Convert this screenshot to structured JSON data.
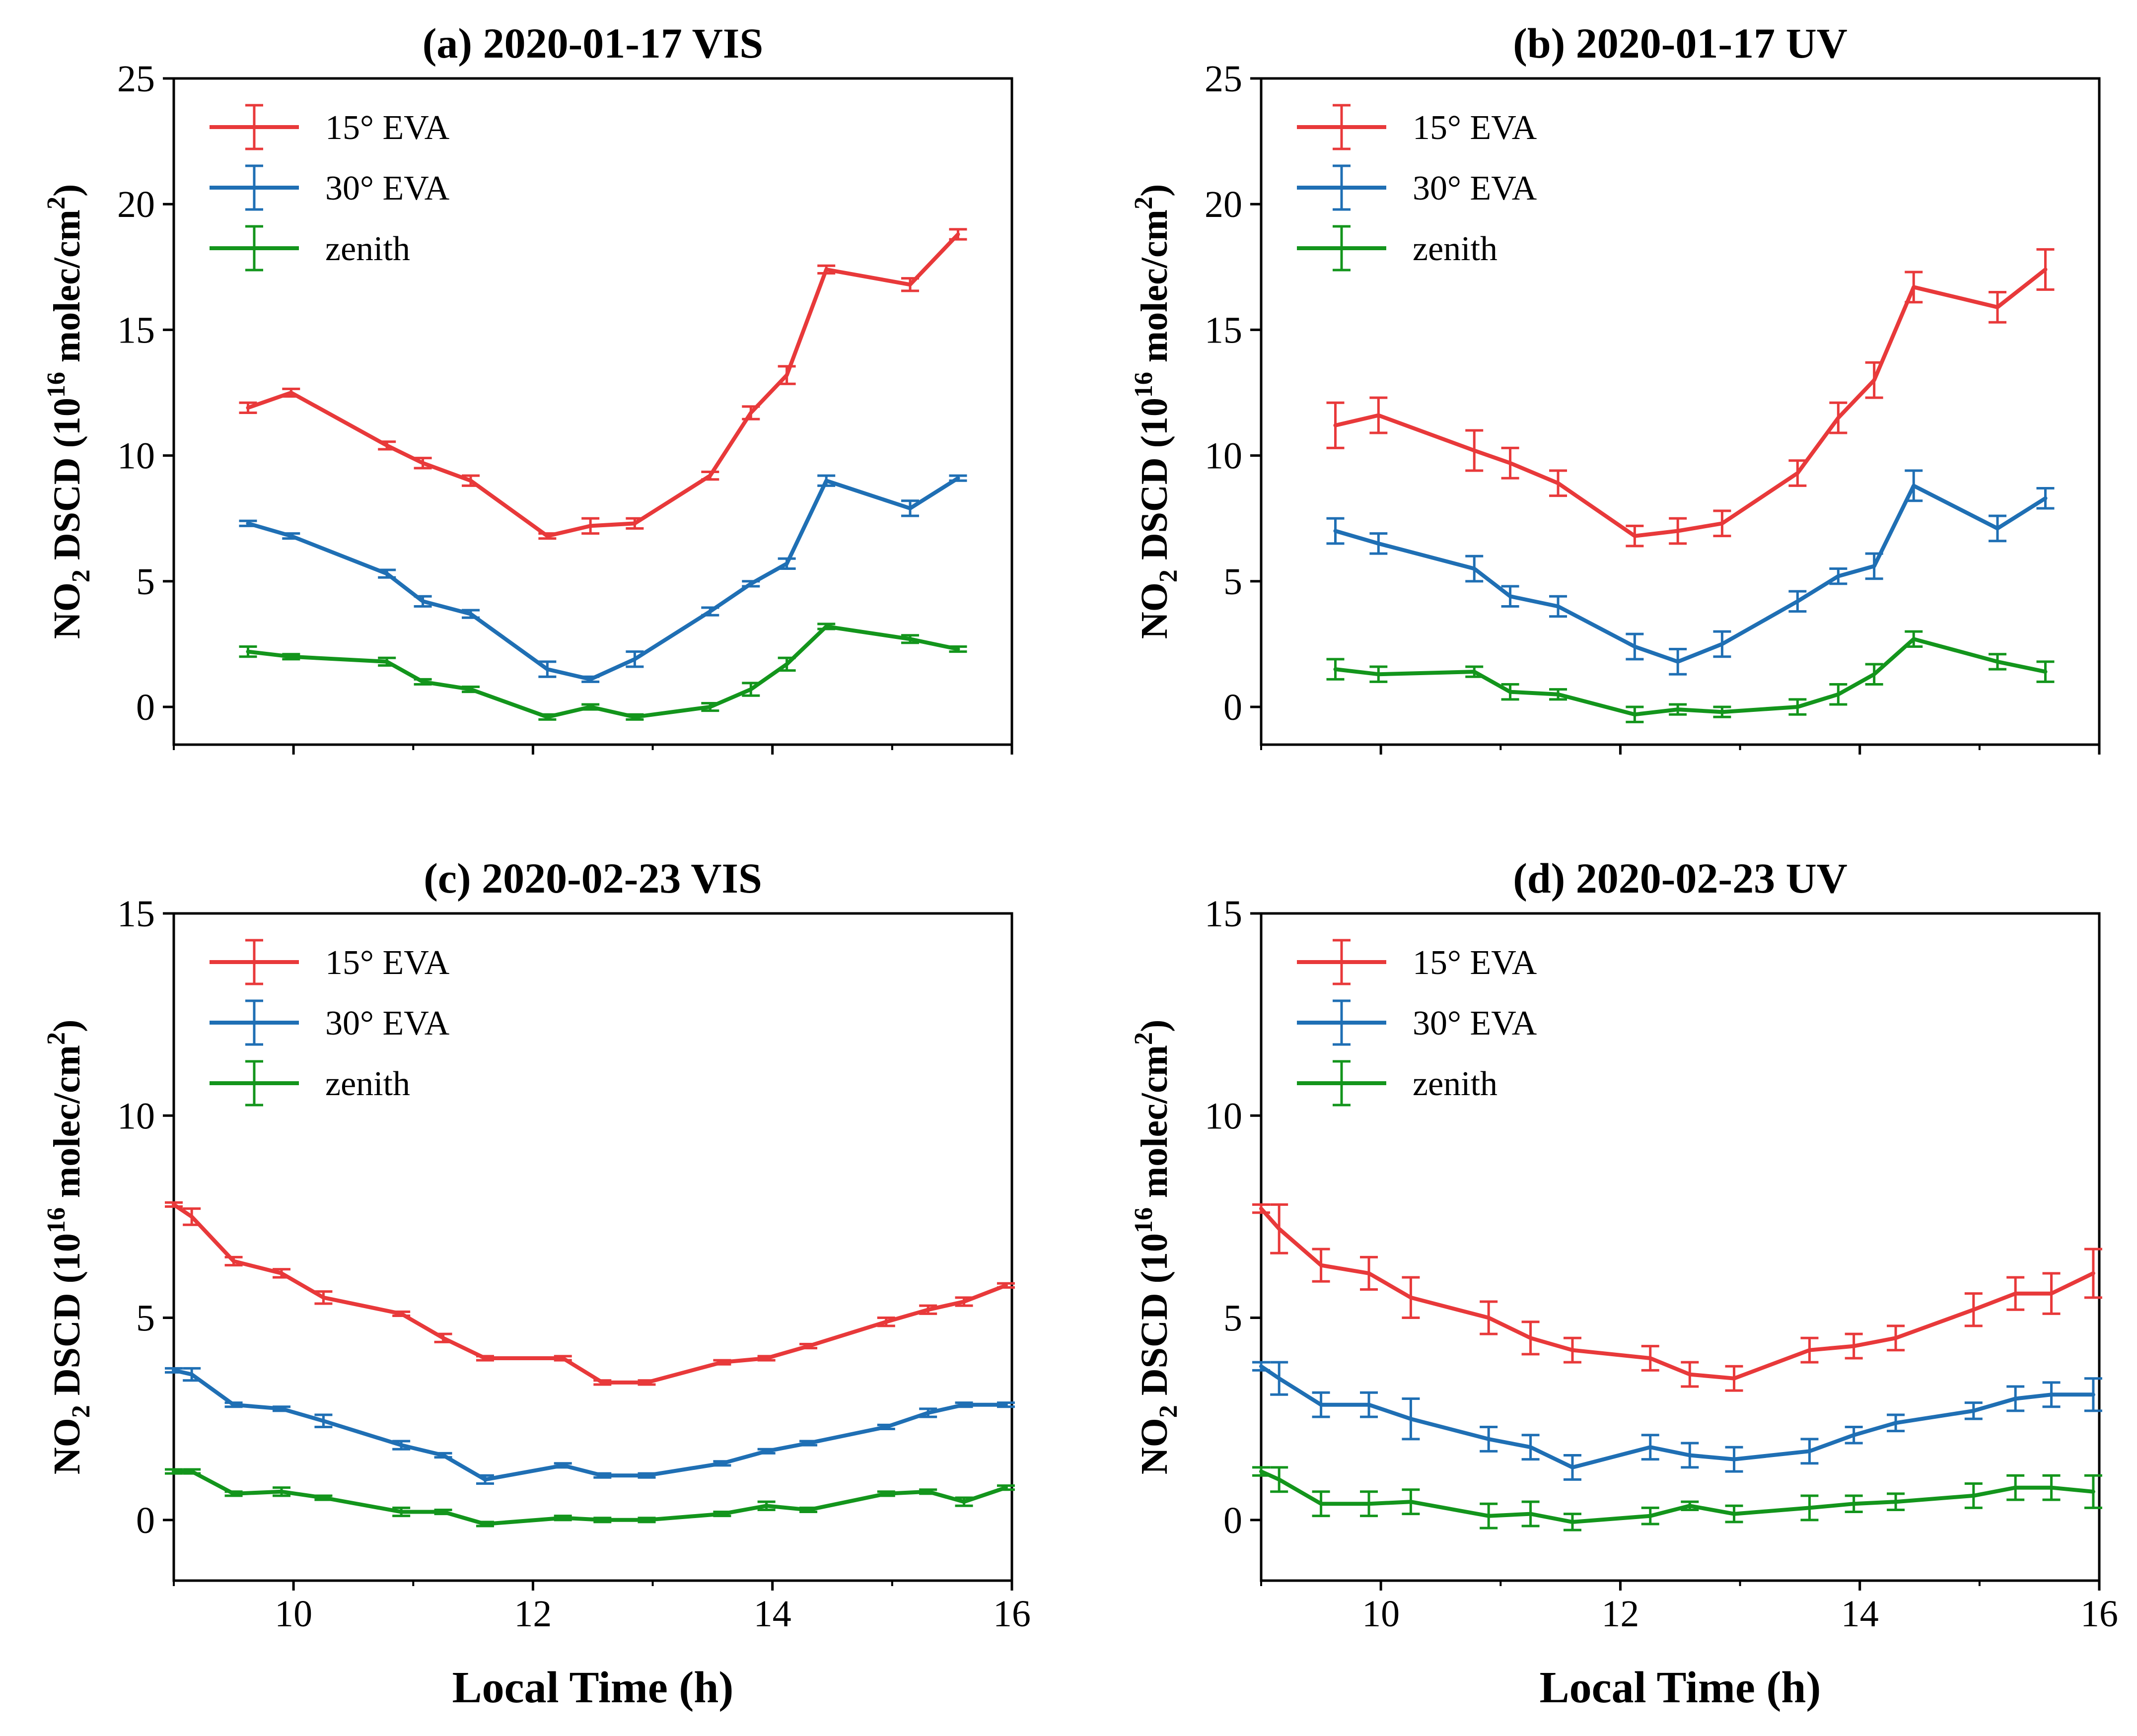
{
  "figure": {
    "xlabel": "Local Time (h)"
  },
  "chart_data": [
    {
      "type": "line",
      "title": "(a) 2020-01-17  VIS",
      "xlabel": "",
      "ylabel": "NO2 DSCD (10^16 molec/cm^2)",
      "ylabel_parts": {
        "main": "NO",
        "sub": "2",
        "mid": " DSCD (10",
        "sup": "16",
        "unit": " molec/cm",
        "sup2": "2",
        "close": ")"
      },
      "xlim": [
        9,
        16
      ],
      "ylim": [
        -1.5,
        25
      ],
      "xticks": [
        10,
        12,
        14,
        16
      ],
      "xtick_labels": false,
      "yticks": [
        0,
        5,
        10,
        15,
        20,
        25
      ],
      "legend_position": "top-left",
      "series": [
        {
          "name": "15° EVA",
          "color": "#e8393a",
          "x": [
            9.62,
            9.98,
            10.78,
            11.08,
            11.48,
            12.12,
            12.48,
            12.85,
            13.48,
            13.82,
            14.12,
            14.45,
            15.15,
            15.55
          ],
          "y": [
            11.9,
            12.5,
            10.4,
            9.7,
            9.0,
            6.8,
            7.2,
            7.3,
            9.2,
            11.7,
            13.2,
            17.4,
            16.8,
            18.8
          ],
          "err": [
            0.2,
            0.15,
            0.15,
            0.2,
            0.2,
            0.1,
            0.3,
            0.2,
            0.15,
            0.25,
            0.35,
            0.15,
            0.25,
            0.2
          ]
        },
        {
          "name": "30° EVA",
          "color": "#1f6fb4",
          "x": [
            9.62,
            9.98,
            10.78,
            11.08,
            11.48,
            12.12,
            12.48,
            12.85,
            13.48,
            13.82,
            14.12,
            14.45,
            15.15,
            15.55
          ],
          "y": [
            7.3,
            6.8,
            5.3,
            4.2,
            3.7,
            1.5,
            1.1,
            1.9,
            3.8,
            4.9,
            5.7,
            9.0,
            7.9,
            9.1
          ],
          "err": [
            0.1,
            0.1,
            0.15,
            0.2,
            0.15,
            0.3,
            0.1,
            0.3,
            0.15,
            0.1,
            0.2,
            0.2,
            0.3,
            0.1
          ]
        },
        {
          "name": "zenith",
          "color": "#13951c",
          "x": [
            9.62,
            9.98,
            10.78,
            11.08,
            11.48,
            12.12,
            12.48,
            12.85,
            13.48,
            13.82,
            14.12,
            14.45,
            15.15,
            15.55
          ],
          "y": [
            2.2,
            2.0,
            1.8,
            1.0,
            0.7,
            -0.4,
            0.0,
            -0.4,
            0.0,
            0.7,
            1.7,
            3.2,
            2.7,
            2.3
          ],
          "err": [
            0.2,
            0.1,
            0.15,
            0.1,
            0.1,
            0.1,
            0.1,
            0.1,
            0.15,
            0.25,
            0.25,
            0.1,
            0.15,
            0.1
          ]
        }
      ]
    },
    {
      "type": "line",
      "title": "(b) 2020-01-17  UV",
      "xlabel": "",
      "ylabel": "NO2 DSCD (10^16 molec/cm^2)",
      "ylabel_parts": {
        "main": "NO",
        "sub": "2",
        "mid": " DSCD (10",
        "sup": "16",
        "unit": " molec/cm",
        "sup2": "2",
        "close": ")"
      },
      "xlim": [
        9,
        16
      ],
      "ylim": [
        -1.5,
        25
      ],
      "xticks": [
        10,
        12,
        14,
        16
      ],
      "xtick_labels": false,
      "yticks": [
        0,
        5,
        10,
        15,
        20,
        25
      ],
      "legend_position": "top-left",
      "series": [
        {
          "name": "15° EVA",
          "color": "#e8393a",
          "x": [
            9.62,
            9.98,
            10.78,
            11.08,
            11.48,
            12.12,
            12.48,
            12.85,
            13.48,
            13.82,
            14.12,
            14.45,
            15.15,
            15.55
          ],
          "y": [
            11.2,
            11.6,
            10.2,
            9.7,
            8.9,
            6.8,
            7.0,
            7.3,
            9.3,
            11.5,
            13.0,
            16.7,
            15.9,
            17.4
          ],
          "err": [
            0.9,
            0.7,
            0.8,
            0.6,
            0.5,
            0.4,
            0.5,
            0.5,
            0.5,
            0.6,
            0.7,
            0.6,
            0.6,
            0.8
          ]
        },
        {
          "name": "30° EVA",
          "color": "#1f6fb4",
          "x": [
            9.62,
            9.98,
            10.78,
            11.08,
            11.48,
            12.12,
            12.48,
            12.85,
            13.48,
            13.82,
            14.12,
            14.45,
            15.15,
            15.55
          ],
          "y": [
            7.0,
            6.5,
            5.5,
            4.4,
            4.0,
            2.4,
            1.8,
            2.5,
            4.2,
            5.2,
            5.6,
            8.8,
            7.1,
            8.3
          ],
          "err": [
            0.5,
            0.4,
            0.5,
            0.4,
            0.4,
            0.5,
            0.5,
            0.5,
            0.4,
            0.3,
            0.5,
            0.6,
            0.5,
            0.4
          ]
        },
        {
          "name": "zenith",
          "color": "#13951c",
          "x": [
            9.62,
            9.98,
            10.78,
            11.08,
            11.48,
            12.12,
            12.48,
            12.85,
            13.48,
            13.82,
            14.12,
            14.45,
            15.15,
            15.55
          ],
          "y": [
            1.5,
            1.3,
            1.4,
            0.6,
            0.5,
            -0.3,
            -0.1,
            -0.2,
            0.0,
            0.5,
            1.3,
            2.7,
            1.8,
            1.4
          ],
          "err": [
            0.4,
            0.3,
            0.2,
            0.3,
            0.2,
            0.3,
            0.2,
            0.2,
            0.3,
            0.4,
            0.4,
            0.3,
            0.3,
            0.4
          ]
        }
      ]
    },
    {
      "type": "line",
      "title": "(c) 2020-02-23  VIS",
      "xlabel": "Local Time (h)",
      "ylabel": "NO2 DSCD (10^16 molec/cm^2)",
      "ylabel_parts": {
        "main": "NO",
        "sub": "2",
        "mid": " DSCD (10",
        "sup": "16",
        "unit": " molec/cm",
        "sup2": "2",
        "close": ")"
      },
      "xlim": [
        9,
        16
      ],
      "ylim": [
        -1.5,
        15
      ],
      "xticks": [
        10,
        12,
        14,
        16
      ],
      "xtick_labels": true,
      "yticks": [
        0,
        5,
        10,
        15
      ],
      "legend_position": "top-left",
      "series": [
        {
          "name": "15° EVA",
          "color": "#e8393a",
          "x": [
            9.0,
            9.15,
            9.5,
            9.9,
            10.25,
            10.9,
            11.25,
            11.6,
            12.25,
            12.58,
            12.95,
            13.58,
            13.95,
            14.3,
            14.95,
            15.3,
            15.6,
            15.95
          ],
          "y": [
            7.8,
            7.5,
            6.4,
            6.1,
            5.5,
            5.1,
            4.5,
            4.0,
            4.0,
            3.4,
            3.4,
            3.9,
            4.0,
            4.3,
            4.9,
            5.2,
            5.4,
            5.8
          ],
          "err": [
            0.05,
            0.2,
            0.1,
            0.1,
            0.15,
            0.05,
            0.1,
            0.05,
            0.05,
            0.05,
            0.05,
            0.05,
            0.05,
            0.05,
            0.1,
            0.1,
            0.1,
            0.05
          ]
        },
        {
          "name": "30° EVA",
          "color": "#1f6fb4",
          "x": [
            9.0,
            9.15,
            9.5,
            9.9,
            10.25,
            10.9,
            11.25,
            11.6,
            12.25,
            12.58,
            12.95,
            13.58,
            13.95,
            14.3,
            14.95,
            15.3,
            15.6,
            15.95
          ],
          "y": [
            3.7,
            3.6,
            2.85,
            2.75,
            2.45,
            1.85,
            1.6,
            1.0,
            1.35,
            1.1,
            1.1,
            1.4,
            1.7,
            1.9,
            2.3,
            2.65,
            2.85,
            2.85
          ],
          "err": [
            0.05,
            0.15,
            0.05,
            0.05,
            0.15,
            0.1,
            0.05,
            0.1,
            0.05,
            0.05,
            0.05,
            0.05,
            0.05,
            0.05,
            0.05,
            0.1,
            0.05,
            0.05
          ]
        },
        {
          "name": "zenith",
          "color": "#13951c",
          "x": [
            9.0,
            9.15,
            9.5,
            9.9,
            10.25,
            10.9,
            11.25,
            11.6,
            12.25,
            12.58,
            12.95,
            13.58,
            13.95,
            14.3,
            14.95,
            15.3,
            15.6,
            15.95
          ],
          "y": [
            1.2,
            1.2,
            0.65,
            0.7,
            0.55,
            0.2,
            0.2,
            -0.1,
            0.05,
            0.0,
            0.0,
            0.15,
            0.35,
            0.25,
            0.65,
            0.7,
            0.45,
            0.8
          ],
          "err": [
            0.05,
            0.05,
            0.05,
            0.1,
            0.05,
            0.1,
            0.05,
            0.05,
            0.05,
            0.05,
            0.05,
            0.05,
            0.1,
            0.05,
            0.05,
            0.05,
            0.1,
            0.05
          ]
        }
      ]
    },
    {
      "type": "line",
      "title": "(d) 2020-02-23  UV",
      "xlabel": "Local Time (h)",
      "ylabel": "NO2 DSCD (10^16 molec/cm^2)",
      "ylabel_parts": {
        "main": "NO",
        "sub": "2",
        "mid": " DSCD (10",
        "sup": "16",
        "unit": " molec/cm",
        "sup2": "2",
        "close": ")"
      },
      "xlim": [
        9,
        16
      ],
      "ylim": [
        -1.5,
        15
      ],
      "xticks": [
        10,
        12,
        14,
        16
      ],
      "xtick_labels": true,
      "yticks": [
        0,
        5,
        10,
        15
      ],
      "legend_position": "top-left",
      "series": [
        {
          "name": "15° EVA",
          "color": "#e8393a",
          "x": [
            9.0,
            9.15,
            9.5,
            9.9,
            10.25,
            10.9,
            11.25,
            11.6,
            12.25,
            12.58,
            12.95,
            13.58,
            13.95,
            14.3,
            14.95,
            15.3,
            15.6,
            15.95
          ],
          "y": [
            7.7,
            7.2,
            6.3,
            6.1,
            5.5,
            5.0,
            4.5,
            4.2,
            4.0,
            3.6,
            3.5,
            4.2,
            4.3,
            4.5,
            5.2,
            5.6,
            5.6,
            6.1
          ],
          "err": [
            0.1,
            0.6,
            0.4,
            0.4,
            0.5,
            0.4,
            0.4,
            0.3,
            0.3,
            0.3,
            0.3,
            0.3,
            0.3,
            0.3,
            0.4,
            0.4,
            0.5,
            0.6
          ]
        },
        {
          "name": "30° EVA",
          "color": "#1f6fb4",
          "x": [
            9.0,
            9.15,
            9.5,
            9.9,
            10.25,
            10.9,
            11.25,
            11.6,
            12.25,
            12.58,
            12.95,
            13.58,
            13.95,
            14.3,
            14.95,
            15.3,
            15.6,
            15.95
          ],
          "y": [
            3.8,
            3.5,
            2.85,
            2.85,
            2.5,
            2.0,
            1.8,
            1.3,
            1.8,
            1.6,
            1.5,
            1.7,
            2.1,
            2.4,
            2.7,
            3.0,
            3.1,
            3.1
          ],
          "err": [
            0.1,
            0.4,
            0.3,
            0.3,
            0.5,
            0.3,
            0.3,
            0.3,
            0.3,
            0.3,
            0.3,
            0.3,
            0.2,
            0.2,
            0.2,
            0.3,
            0.3,
            0.4
          ]
        },
        {
          "name": "zenith",
          "color": "#13951c",
          "x": [
            9.0,
            9.15,
            9.5,
            9.9,
            10.25,
            10.9,
            11.25,
            11.6,
            12.25,
            12.58,
            12.95,
            13.58,
            13.95,
            14.3,
            14.95,
            15.3,
            15.6,
            15.95
          ],
          "y": [
            1.2,
            1.0,
            0.4,
            0.4,
            0.45,
            0.1,
            0.15,
            -0.05,
            0.1,
            0.35,
            0.15,
            0.3,
            0.4,
            0.45,
            0.6,
            0.8,
            0.8,
            0.7
          ],
          "err": [
            0.1,
            0.3,
            0.3,
            0.3,
            0.3,
            0.3,
            0.3,
            0.2,
            0.2,
            0.1,
            0.2,
            0.3,
            0.2,
            0.2,
            0.3,
            0.3,
            0.3,
            0.4
          ]
        }
      ]
    }
  ]
}
